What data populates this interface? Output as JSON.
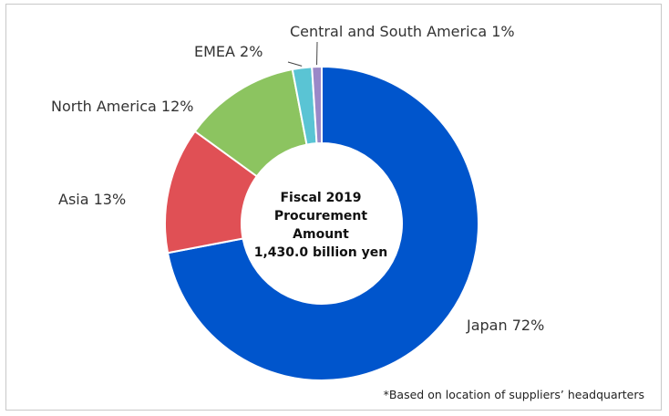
{
  "chart_data": {
    "type": "pie",
    "variant": "donut",
    "categories": [
      "Japan",
      "Asia",
      "North America",
      "EMEA",
      "Central and South America"
    ],
    "values": [
      72,
      13,
      12,
      2,
      1
    ],
    "unit": "%",
    "colors": [
      "#0055cc",
      "#e05055",
      "#8cc460",
      "#5ac4d4",
      "#9a88c8"
    ],
    "slice_labels": [
      "Japan 72%",
      "Asia 13%",
      "North America 12%",
      "EMEA 2%",
      "Central and South America 1%"
    ],
    "center_lines": [
      "Fiscal 2019",
      "Procurement",
      "Amount",
      "1,430.0 billion yen"
    ],
    "footnote": "*Based on location of suppliers’ headquarters"
  }
}
